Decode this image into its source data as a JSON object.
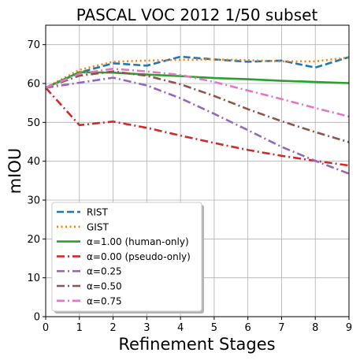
{
  "chart_data": {
    "type": "line",
    "title": "PASCAL VOC 2012 1/50 subset",
    "xlabel": "Refinement Stages",
    "ylabel": "mIOU",
    "xlim": [
      0,
      9
    ],
    "ylim": [
      0,
      75
    ],
    "xticks": [
      0,
      1,
      2,
      3,
      4,
      5,
      6,
      7,
      8,
      9
    ],
    "yticks": [
      0,
      10,
      20,
      30,
      40,
      50,
      60,
      70
    ],
    "grid": true,
    "legend_position": "lower-left",
    "x": [
      0,
      1,
      2,
      3,
      4,
      5,
      6,
      7,
      8,
      9
    ],
    "series": [
      {
        "name": "RIST",
        "color": "#1f77b4",
        "dash": "dashed",
        "values": [
          58.9,
          62.8,
          65.2,
          64.6,
          66.9,
          66.2,
          65.6,
          65.9,
          64.1,
          66.8
        ]
      },
      {
        "name": "GIST",
        "color": "#ff7f0e",
        "dash": "dotted",
        "values": [
          58.9,
          63.5,
          65.6,
          65.9,
          66.1,
          66.2,
          66.0,
          65.7,
          65.7,
          66.7
        ]
      },
      {
        "name": "α=1.00 (human-only)",
        "color": "#2ca02c",
        "dash": "solid",
        "values": [
          58.9,
          62.9,
          62.8,
          62.3,
          61.9,
          61.4,
          61.1,
          60.7,
          60.4,
          60.1
        ]
      },
      {
        "name": "α=0.00 (pseudo-only)",
        "color": "#d62728",
        "dash": "dashdot",
        "values": [
          58.9,
          49.3,
          50.2,
          48.6,
          46.6,
          44.7,
          42.9,
          41.4,
          40.1,
          38.9
        ]
      },
      {
        "name": "α=0.25",
        "color": "#9467bd",
        "dash": "dashdot",
        "values": [
          58.9,
          60.2,
          61.5,
          59.5,
          56.2,
          52.2,
          48.0,
          43.7,
          40.1,
          36.8
        ]
      },
      {
        "name": "α=0.50",
        "color": "#8c564b",
        "dash": "dashdot",
        "values": [
          58.9,
          62.0,
          63.1,
          62.0,
          59.8,
          56.8,
          53.4,
          50.3,
          47.5,
          44.9
        ]
      },
      {
        "name": "α=0.75",
        "color": "#e377c2",
        "dash": "dashdot",
        "values": [
          58.9,
          62.5,
          63.8,
          63.1,
          62.2,
          60.4,
          58.2,
          56.0,
          53.7,
          51.5
        ]
      }
    ]
  }
}
